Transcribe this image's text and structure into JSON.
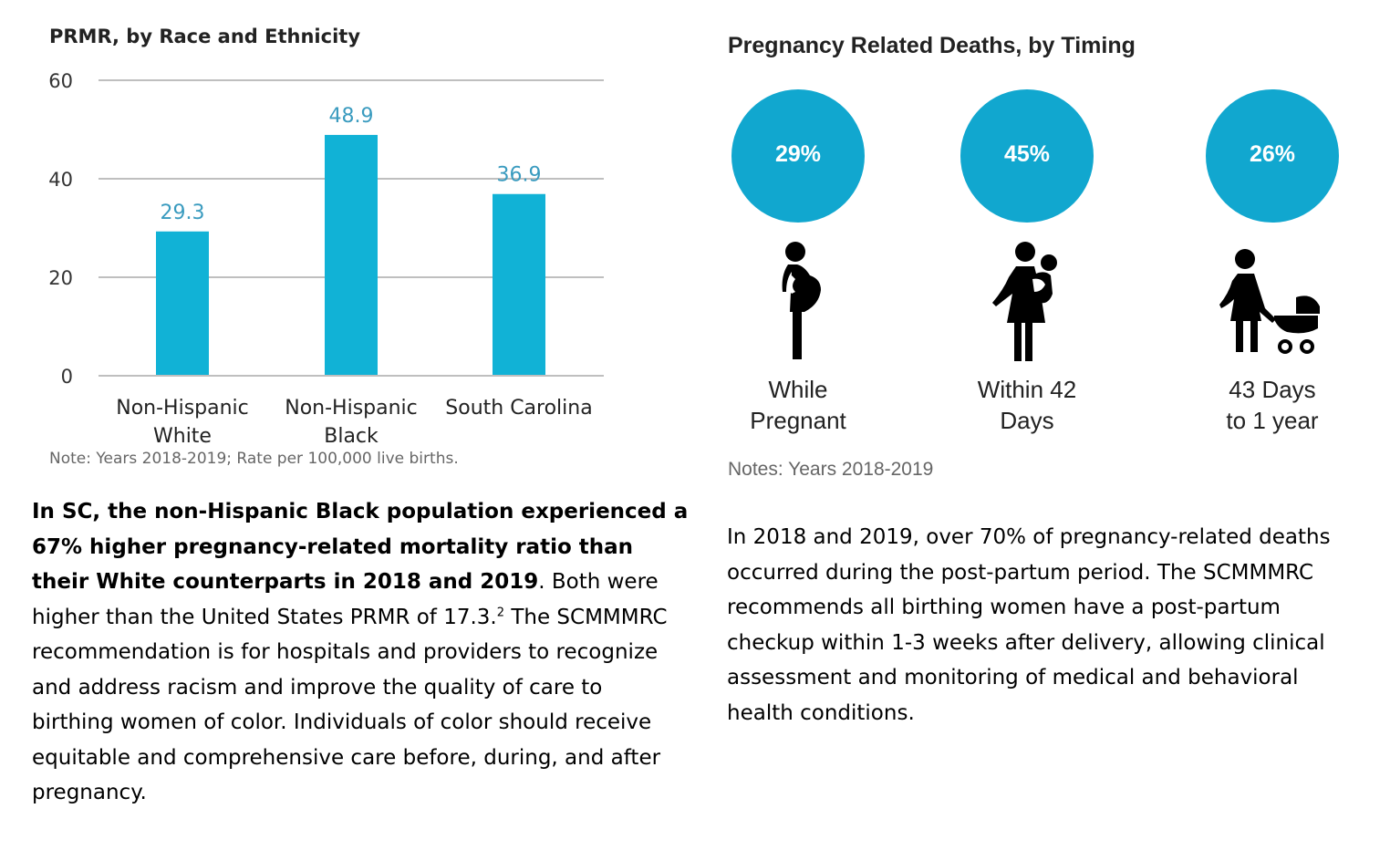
{
  "left_panel": {
    "title": "PRMR, by Race and Ethnicity",
    "note": "Note: Years 2018-2019; Rate per 100,000 live births.",
    "paragraph": {
      "bold": "In SC, the non-Hispanic Black population experienced a 67% higher pregnancy-related mortality ratio than their White counterparts in 2018 and 2019",
      "text1": ". Both were higher than the United States PRMR of 17.3.",
      "superscript": "2",
      "text2": " The SCMMMRC recommendation is for hospitals and providers to recognize and address racism and improve the quality of care to birthing women of color. Individuals of color should receive equitable and comprehensive care before, during, and after pregnancy."
    }
  },
  "chart_data": {
    "type": "bar",
    "categories": [
      [
        "Non-Hispanic",
        "White"
      ],
      [
        "Non-Hispanic",
        "Black"
      ],
      [
        "South Carolina"
      ]
    ],
    "values": [
      29.3,
      48.9,
      36.9
    ],
    "data_labels": [
      "29.3",
      "48.9",
      "36.9"
    ],
    "yticks": [
      0,
      20,
      40,
      60
    ],
    "ylim": [
      0,
      60
    ],
    "grid": true,
    "colors": {
      "bar": "#11b2d6",
      "label": "#3a9bbf",
      "grid": "#bfbfbf"
    }
  },
  "right_panel": {
    "title": "Pregnancy Related Deaths, by Timing",
    "items": [
      {
        "percent": "29%",
        "value": 29,
        "label": [
          "While",
          "Pregnant"
        ],
        "icon": "pregnant-woman-icon"
      },
      {
        "percent": "45%",
        "value": 45,
        "label": [
          "Within 42",
          "Days"
        ],
        "icon": "woman-with-baby-icon"
      },
      {
        "percent": "26%",
        "value": 26,
        "label": [
          "43 Days",
          "to 1 year"
        ],
        "icon": "woman-with-stroller-icon"
      }
    ],
    "note": "Notes: Years 2018-2019",
    "paragraph": "In 2018 and 2019, over 70% of pregnancy-related deaths occurred during the post-partum period. The SCMMMRC recommends all birthing women have a post-partum checkup within 1-3 weeks after delivery, allowing clinical assessment and monitoring of medical and behavioral health conditions.",
    "circle_color": "#11a7cf"
  }
}
